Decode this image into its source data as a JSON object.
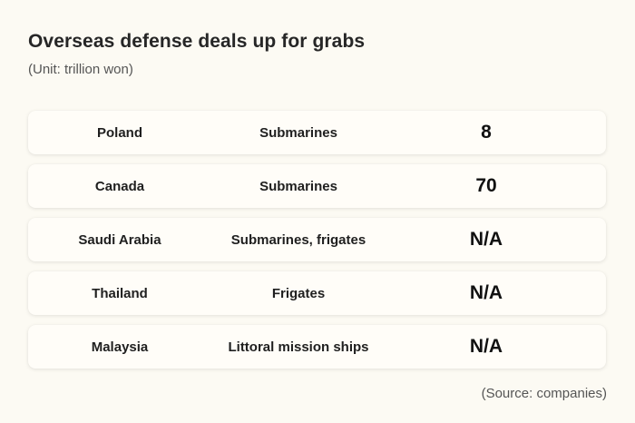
{
  "title": "Overseas defense deals up for grabs",
  "subtitle": "(Unit: trillion won)",
  "source": "(Source: companies)",
  "chart_data": {
    "type": "table",
    "title": "Overseas defense deals up for grabs",
    "subtitle": "(Unit: trillion won)",
    "rows": [
      {
        "country": "Poland",
        "vessel": "Submarines",
        "value": "8"
      },
      {
        "country": "Canada",
        "vessel": "Submarines",
        "value": "70"
      },
      {
        "country": "Saudi Arabia",
        "vessel": "Submarines, frigates",
        "value": "N/A"
      },
      {
        "country": "Thailand",
        "vessel": "Frigates",
        "value": "N/A"
      },
      {
        "country": "Malaysia",
        "vessel": "Littoral mission ships",
        "value": "N/A"
      }
    ],
    "source": "(Source: companies)"
  }
}
